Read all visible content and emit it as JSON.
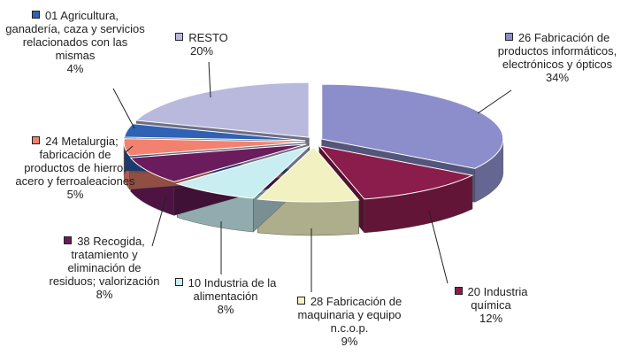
{
  "chart_data": {
    "type": "pie",
    "categories": [
      "26 Fabricación de productos informáticos, electrónicos y ópticos",
      "20 Industria química",
      "28 Fabricación de maquinaria y equipo n.c.o.p.",
      "10 Industria de la alimentación",
      "38 Recogida, tratamiento y eliminación de residuos; valorización",
      "24 Metalurgia; fabricación de productos de hierro, acero y ferroaleaciones",
      "01 Agricultura, ganadería, caza y servicios relacionados con las mismas",
      "RESTO"
    ],
    "values": [
      34,
      12,
      9,
      8,
      8,
      5,
      4,
      20
    ],
    "value_labels": [
      "34%",
      "12%",
      "9%",
      "8%",
      "8%",
      "5%",
      "4%",
      "20%"
    ],
    "colors": [
      "#8c8ecb",
      "#8a1d4c",
      "#f2f1c2",
      "#c9eef1",
      "#6b1c5c",
      "#f2826f",
      "#2f62b4",
      "#b9b9de"
    ]
  }
}
